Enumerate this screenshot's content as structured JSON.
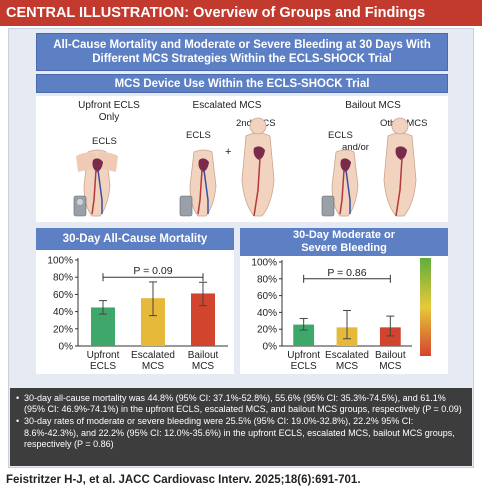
{
  "header": {
    "label": "CENTRAL ILLUSTRATION:",
    "title": "Overview of Groups and Findings"
  },
  "banner_main": {
    "line1": "All-Cause Mortality and Moderate or Severe Bleeding at 30 Days With",
    "line2": "Different MCS Strategies Within the ECLS-SHOCK Trial"
  },
  "banner_device": "MCS Device Use Within the ECLS-SHOCK Trial",
  "groups": {
    "upfront": {
      "title_line1": "Upfront ECLS",
      "title_line2": "Only",
      "device1": "ECLS"
    },
    "escalated": {
      "title": "Escalated MCS",
      "device1": "ECLS",
      "connector": "+",
      "device2": "2nd MCS"
    },
    "bailout": {
      "title": "Bailout MCS",
      "device1": "ECLS",
      "connector": "and/or",
      "device2": "Other MCS"
    }
  },
  "colors": {
    "upfront": "#3ea86a",
    "escalated": "#e6b93a",
    "bailout": "#d3442e",
    "banner": "#5d7fc4",
    "header": "#c23a2e"
  },
  "chart_data": [
    {
      "type": "bar",
      "title": "30-Day All-Cause Mortality",
      "categories": [
        "Upfront ECLS",
        "Escalated MCS",
        "Bailout MCS"
      ],
      "category_lines": [
        [
          "Upfront",
          "ECLS"
        ],
        [
          "Escalated",
          "MCS"
        ],
        [
          "Bailout",
          "MCS"
        ]
      ],
      "values": [
        44.8,
        55.6,
        61.1
      ],
      "ci_low": [
        37.1,
        35.3,
        46.9
      ],
      "ci_high": [
        52.8,
        74.5,
        74.1
      ],
      "ylim": [
        0,
        100
      ],
      "yticks": [
        "0%",
        "20%",
        "40%",
        "60%",
        "80%",
        "100%"
      ],
      "p_value": "P = 0.09",
      "grid": false
    },
    {
      "type": "bar",
      "title_line1": "30-Day Moderate or",
      "title_line2": "Severe Bleeding",
      "categories": [
        "Upfront ECLS",
        "Escalated MCS",
        "Bailout MCS"
      ],
      "category_lines": [
        [
          "Upfront",
          "ECLS"
        ],
        [
          "Escalated",
          "MCS"
        ],
        [
          "Bailout",
          "MCS"
        ]
      ],
      "values": [
        25.5,
        22.2,
        22.2
      ],
      "ci_low": [
        19.0,
        8.6,
        12.0
      ],
      "ci_high": [
        32.8,
        42.3,
        35.6
      ],
      "ylim": [
        0,
        100
      ],
      "yticks": [
        "0%",
        "20%",
        "40%",
        "60%",
        "80%",
        "100%"
      ],
      "p_value": "P = 0.86",
      "grid": false
    }
  ],
  "notes": [
    "30-day all-cause mortality was 44.8% (95% CI: 37.1%-52.8%), 55.6% (95% CI: 35.3%-74.5%), and 61.1% (95% CI: 46.9%-74.1%) in the upfront ECLS, escalated MCS, and bailout MCS groups, respectively (P = 0.09)",
    "30-day rates of moderate or severe bleeding were 25.5% (95% CI: 19.0%-32.8%), 22.2% 95% CI: 8.6%-42.3%), and 22.2% (95% CI: 12.0%-35.6%) in the upfront ECLS, escalated MCS, bailout MCS groups, respectively (P = 0.86)"
  ],
  "citation": "Feistritzer H-J, et al. JACC Cardiovasc Interv. 2025;18(6):691-701."
}
